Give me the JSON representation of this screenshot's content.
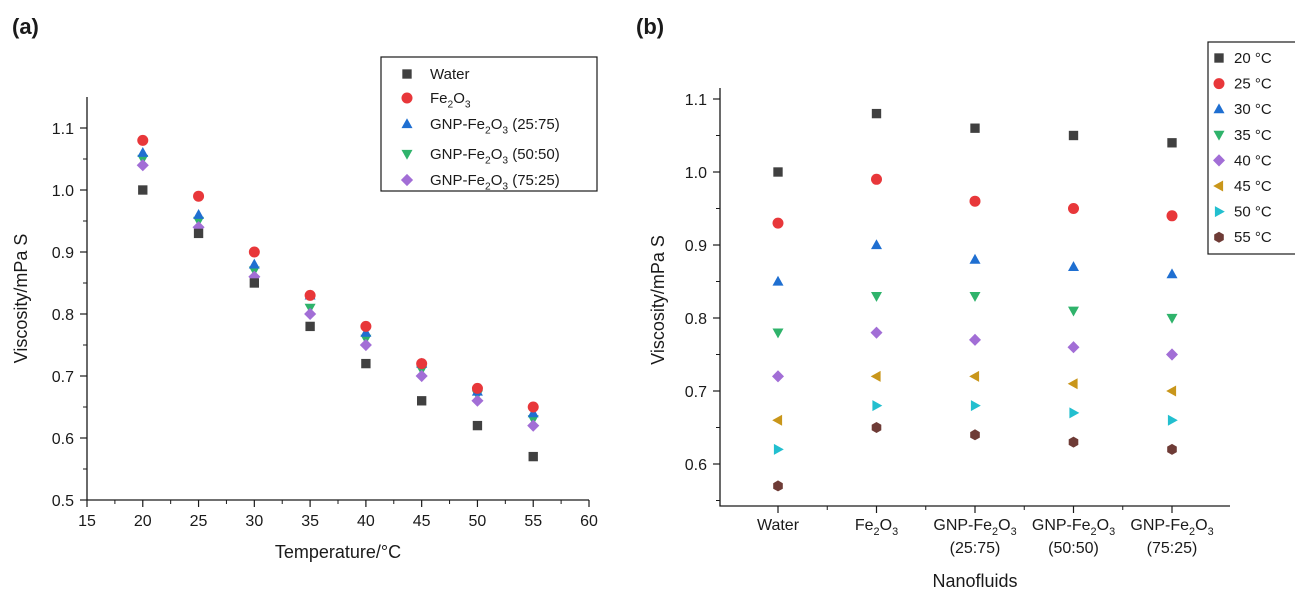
{
  "chart_data": [
    {
      "panel": "(a)",
      "type": "scatter",
      "xlabel": "Temperature/°C",
      "ylabel": "Viscosity/mPa S",
      "xlim": [
        15,
        60
      ],
      "ylim": [
        0.5,
        1.15
      ],
      "xticks": [
        "15",
        "20",
        "25",
        "30",
        "35",
        "40",
        "45",
        "50",
        "55",
        "60"
      ],
      "yticks": [
        "0.5",
        "0.6",
        "0.7",
        "0.8",
        "0.9",
        "1.0",
        "1.1"
      ],
      "x": [
        20,
        25,
        30,
        35,
        40,
        45,
        50,
        55
      ],
      "legend_position": "top-right",
      "series": [
        {
          "name": "Water",
          "marker": "square",
          "color": "#404040",
          "values": [
            1.0,
            0.93,
            0.85,
            0.78,
            0.72,
            0.66,
            0.62,
            0.57
          ]
        },
        {
          "name": "Fe2O3",
          "marker": "circle",
          "color": "#e8373a",
          "values": [
            1.08,
            0.99,
            0.9,
            0.83,
            0.78,
            0.72,
            0.68,
            0.65
          ]
        },
        {
          "name": "GNP-Fe2O3 (25:75)",
          "marker": "triangle-up",
          "color": "#1f6fd1",
          "values": [
            1.06,
            0.96,
            0.88,
            0.83,
            0.77,
            0.72,
            0.675,
            0.64
          ]
        },
        {
          "name": "GNP-Fe2O3 (50:50)",
          "marker": "triangle-down",
          "color": "#2fb36b",
          "values": [
            1.05,
            0.95,
            0.87,
            0.81,
            0.76,
            0.71,
            0.67,
            0.63
          ]
        },
        {
          "name": "GNP-Fe2O3 (75:25)",
          "marker": "diamond",
          "color": "#a26ed6",
          "values": [
            1.04,
            0.94,
            0.86,
            0.8,
            0.75,
            0.7,
            0.66,
            0.62
          ]
        }
      ]
    },
    {
      "panel": "(b)",
      "type": "scatter",
      "xlabel": "Nanofluids",
      "ylabel": "Viscosity/mPa S",
      "ylim": [
        0.55,
        1.1
      ],
      "yticks": [
        "0.6",
        "0.7",
        "0.8",
        "0.9",
        "1.0",
        "1.1"
      ],
      "categories": [
        "Water",
        "Fe2O3",
        "GNP-Fe2O3 (25:75)",
        "GNP-Fe2O3 (50:50)",
        "GNP-Fe2O3 (75:25)"
      ],
      "legend_position": "top-right",
      "series": [
        {
          "name": "20 °C",
          "marker": "square",
          "color": "#404040",
          "values": [
            1.0,
            1.08,
            1.06,
            1.05,
            1.04
          ]
        },
        {
          "name": "25 °C",
          "marker": "circle",
          "color": "#e8373a",
          "values": [
            0.93,
            0.99,
            0.96,
            0.95,
            0.94
          ]
        },
        {
          "name": "30 °C",
          "marker": "triangle-up",
          "color": "#1f6fd1",
          "values": [
            0.85,
            0.9,
            0.88,
            0.87,
            0.86
          ]
        },
        {
          "name": "35 °C",
          "marker": "triangle-down",
          "color": "#2fb36b",
          "values": [
            0.78,
            0.83,
            0.83,
            0.81,
            0.8
          ]
        },
        {
          "name": "40 °C",
          "marker": "diamond",
          "color": "#a26ed6",
          "values": [
            0.72,
            0.78,
            0.77,
            0.76,
            0.75
          ]
        },
        {
          "name": "45 °C",
          "marker": "triangle-left",
          "color": "#c9961a",
          "values": [
            0.66,
            0.72,
            0.72,
            0.71,
            0.7
          ]
        },
        {
          "name": "50 °C",
          "marker": "triangle-right",
          "color": "#22bfcf",
          "values": [
            0.62,
            0.68,
            0.68,
            0.67,
            0.66
          ]
        },
        {
          "name": "55 °C",
          "marker": "hexagon",
          "color": "#6e3b36",
          "values": [
            0.57,
            0.65,
            0.64,
            0.63,
            0.62
          ]
        }
      ]
    }
  ]
}
